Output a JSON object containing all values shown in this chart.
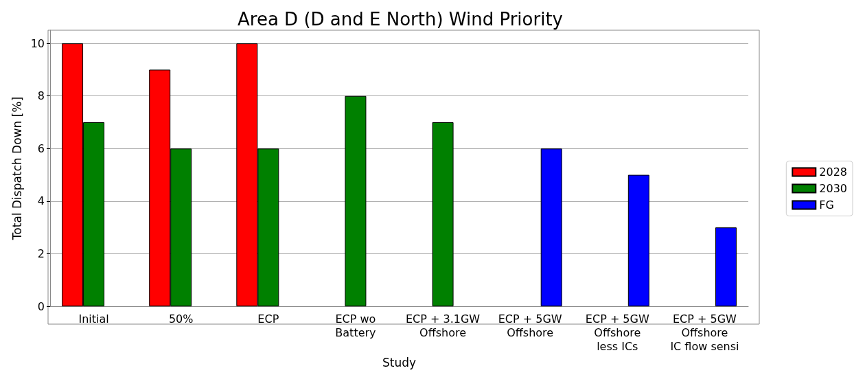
{
  "chart_data": {
    "type": "bar",
    "title": "Area D (D and E North) Wind Priority",
    "xlabel": "Study",
    "ylabel": "Total Dispatch Down [%]",
    "categories": [
      "Initial",
      "50%",
      "ECP",
      "ECP wo\nBattery",
      "ECP + 3.1GW\nOffshore",
      "ECP + 5GW\nOffshore",
      "ECP + 5GW\nOffshore\nless ICs",
      "ECP + 5GW\nOffshore\nIC flow sensi"
    ],
    "series": [
      {
        "name": "2028",
        "color": "#ff0000",
        "values": [
          10,
          9,
          10,
          null,
          null,
          null,
          null,
          null
        ]
      },
      {
        "name": "2030",
        "color": "#008000",
        "values": [
          7,
          6,
          6,
          8,
          7,
          null,
          null,
          null
        ]
      },
      {
        "name": "FG",
        "color": "#0000ff",
        "values": [
          null,
          null,
          null,
          null,
          null,
          6,
          5,
          3
        ]
      }
    ],
    "ylim": [
      0,
      10.5
    ],
    "yticks": [
      0,
      2,
      4,
      6,
      8,
      10
    ],
    "grid": "y",
    "legend": "right"
  }
}
